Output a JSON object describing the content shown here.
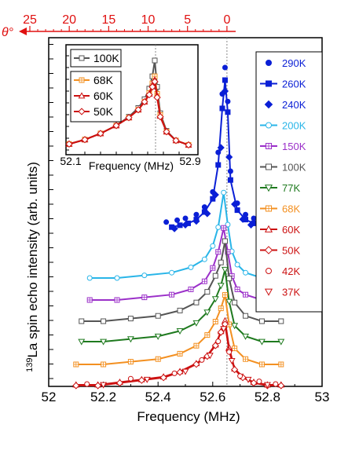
{
  "colors": {
    "290K": "#0a1fd6",
    "260K": "#0a1fd6",
    "240K": "#0a1fd6",
    "200K": "#29b5e8",
    "150K": "#9b30c9",
    "100K": "#555555",
    "77K": "#1f7a1f",
    "68K": "#f39021",
    "60K": "#cc1111",
    "50K": "#cc1111",
    "42K": "#cc1111",
    "37K": "#cc1111",
    "theta": "#e01010"
  },
  "chart_data": [
    {
      "type": "line",
      "xlabel": "Frequency (MHz)",
      "ylabel_sup": "139",
      "ylabel": "La spin echo intensity (arb. units)",
      "xlim": [
        52.0,
        53.0
      ],
      "x_ticks": [
        "52",
        "52.2",
        "52.4",
        "52.6",
        "52.8",
        "53"
      ],
      "x_tick_values": [
        52.0,
        52.2,
        52.4,
        52.6,
        52.8,
        53.0
      ],
      "vline_x": 52.652,
      "top_axis": {
        "label": "θ°",
        "ticks": [
          "25",
          "20",
          "15",
          "10",
          "5",
          "0"
        ],
        "tick_values": [
          25,
          20,
          15,
          10,
          5,
          0
        ]
      },
      "legend": [
        "290K",
        "260K",
        "240K",
        "200K",
        "150K",
        "100K",
        "77K",
        "68K",
        "60K",
        "50K",
        "42K",
        "37K"
      ],
      "series": [
        {
          "name": "290K",
          "marker": "circle-filled",
          "line": false,
          "x": [
            52.43,
            52.47,
            52.5,
            52.54,
            52.57,
            52.6,
            52.62,
            52.635,
            52.645,
            52.655,
            52.665,
            52.69,
            52.72,
            52.75,
            52.78
          ],
          "y": [
            0.18,
            0.19,
            0.2,
            0.22,
            0.26,
            0.34,
            0.55,
            0.86,
            1.0,
            0.82,
            0.45,
            0.28,
            0.22,
            0.2,
            0.19
          ]
        },
        {
          "name": "260K",
          "marker": "square-filled",
          "line": true,
          "x": [
            52.45,
            52.48,
            52.51,
            52.54,
            52.57,
            52.6,
            52.62,
            52.635,
            52.645,
            52.655,
            52.665,
            52.69,
            52.72,
            52.75,
            52.78
          ],
          "y": [
            0.17,
            0.18,
            0.19,
            0.21,
            0.25,
            0.32,
            0.5,
            0.8,
            0.95,
            0.78,
            0.42,
            0.26,
            0.21,
            0.19,
            0.18
          ]
        },
        {
          "name": "240K",
          "marker": "diamond-filled",
          "line": false,
          "x": [
            52.46,
            52.5,
            52.54,
            52.58,
            52.61,
            52.63,
            52.645,
            52.66,
            52.68,
            52.71,
            52.74,
            52.77
          ],
          "y": [
            0.17,
            0.19,
            0.21,
            0.25,
            0.35,
            0.6,
            0.9,
            0.55,
            0.3,
            0.22,
            0.19,
            0.18
          ]
        },
        {
          "name": "200K",
          "marker": "circle-open",
          "line": true,
          "x": [
            52.15,
            52.25,
            52.35,
            52.45,
            52.52,
            52.57,
            52.6,
            52.62,
            52.64,
            52.655,
            52.67,
            52.69,
            52.72,
            52.78,
            52.85
          ],
          "y": [
            0.0,
            0.0,
            0.01,
            0.02,
            0.04,
            0.07,
            0.12,
            0.19,
            0.32,
            0.2,
            0.1,
            0.05,
            0.02,
            0.0,
            0.0
          ]
        },
        {
          "name": "150K",
          "marker": "crossed-square-open",
          "line": true,
          "x": [
            52.15,
            52.25,
            52.35,
            52.45,
            52.52,
            52.57,
            52.6,
            52.62,
            52.64,
            52.655,
            52.67,
            52.69,
            52.72,
            52.78,
            52.85
          ],
          "y": [
            0.0,
            0.0,
            0.01,
            0.02,
            0.04,
            0.07,
            0.12,
            0.18,
            0.27,
            0.18,
            0.09,
            0.04,
            0.02,
            0.0,
            0.0
          ]
        },
        {
          "name": "100K",
          "marker": "square-open",
          "line": true,
          "x": [
            52.12,
            52.2,
            52.3,
            52.4,
            52.48,
            52.54,
            52.58,
            52.61,
            52.63,
            52.645,
            52.66,
            52.68,
            52.72,
            52.78,
            52.85
          ],
          "y": [
            0.0,
            0.0,
            0.01,
            0.02,
            0.04,
            0.07,
            0.11,
            0.17,
            0.22,
            0.3,
            0.16,
            0.07,
            0.02,
            0.0,
            0.0
          ]
        },
        {
          "name": "77K",
          "marker": "triangle-down-open",
          "line": true,
          "x": [
            52.12,
            52.2,
            52.3,
            52.4,
            52.48,
            52.54,
            52.58,
            52.61,
            52.63,
            52.645,
            52.66,
            52.68,
            52.72,
            52.78,
            52.85
          ],
          "y": [
            0.0,
            0.0,
            0.01,
            0.02,
            0.04,
            0.07,
            0.11,
            0.16,
            0.21,
            0.27,
            0.15,
            0.06,
            0.02,
            0.0,
            0.0
          ]
        },
        {
          "name": "68K",
          "marker": "crossed-square-open",
          "line": true,
          "x": [
            52.1,
            52.2,
            52.3,
            52.4,
            52.48,
            52.54,
            52.58,
            52.61,
            52.63,
            52.645,
            52.66,
            52.68,
            52.72,
            52.78,
            52.85
          ],
          "y": [
            0.0,
            0.0,
            0.01,
            0.02,
            0.04,
            0.07,
            0.11,
            0.16,
            0.21,
            0.26,
            0.15,
            0.06,
            0.02,
            0.0,
            0.0
          ]
        },
        {
          "name": "60K",
          "marker": "triangle-up-open",
          "line": true,
          "x": [
            52.1,
            52.18,
            52.26,
            52.34,
            52.42,
            52.48,
            52.54,
            52.58,
            52.61,
            52.63,
            52.645,
            52.66,
            52.68,
            52.71,
            52.75,
            52.8,
            52.85
          ],
          "y": [
            0.0,
            0.0,
            0.01,
            0.02,
            0.03,
            0.05,
            0.08,
            0.11,
            0.15,
            0.2,
            0.24,
            0.14,
            0.06,
            0.03,
            0.01,
            0.0,
            0.0
          ]
        },
        {
          "name": "50K",
          "marker": "diamond-open",
          "line": true,
          "x": [
            52.1,
            52.18,
            52.26,
            52.34,
            52.42,
            52.48,
            52.54,
            52.58,
            52.61,
            52.63,
            52.645,
            52.66,
            52.68,
            52.71,
            52.75,
            52.8,
            52.85
          ],
          "y": [
            0.0,
            0.0,
            0.01,
            0.02,
            0.03,
            0.05,
            0.08,
            0.11,
            0.15,
            0.2,
            0.23,
            0.13,
            0.06,
            0.03,
            0.01,
            0.0,
            0.0
          ]
        },
        {
          "name": "42K",
          "marker": "circle-open",
          "line": false,
          "x": [
            52.14,
            52.3,
            52.46,
            52.56,
            52.62,
            52.66,
            52.7,
            52.77,
            52.83
          ],
          "y": [
            0.0,
            0.02,
            0.04,
            0.09,
            0.16,
            0.12,
            0.03,
            0.01,
            0.0
          ]
        },
        {
          "name": "37K",
          "marker": "triangle-down-open",
          "line": false,
          "x": [
            52.2,
            52.36,
            52.5,
            52.59,
            52.64,
            52.67,
            52.73,
            52.8
          ],
          "y": [
            0.0,
            0.02,
            0.05,
            0.11,
            0.21,
            0.09,
            0.02,
            0.0
          ]
        }
      ]
    },
    {
      "type": "line",
      "name": "inset",
      "xlabel": "Frequency (MHz)",
      "xlim": [
        52.1,
        52.9
      ],
      "x_ticks": [
        "52.1",
        "52.9"
      ],
      "x_tick_values": [
        52.1,
        52.9
      ],
      "vline_x": 52.65,
      "legend": [
        "100K",
        "68K",
        "60K",
        "50K"
      ],
      "series": [
        {
          "name": "100K",
          "marker": "square-open",
          "line": true,
          "x": [
            52.1,
            52.2,
            52.3,
            52.4,
            52.48,
            52.54,
            52.58,
            52.61,
            52.63,
            52.645,
            52.66,
            52.68,
            52.72,
            52.78,
            52.86
          ],
          "y": [
            0.05,
            0.1,
            0.17,
            0.26,
            0.36,
            0.46,
            0.56,
            0.68,
            0.82,
            1.0,
            0.7,
            0.4,
            0.2,
            0.09,
            0.04
          ]
        },
        {
          "name": "68K",
          "marker": "crossed-square-open",
          "line": true,
          "x": [
            52.1,
            52.2,
            52.3,
            52.4,
            52.48,
            52.54,
            52.58,
            52.61,
            52.63,
            52.645,
            52.66,
            52.68,
            52.72,
            52.78,
            52.86
          ],
          "y": [
            0.05,
            0.1,
            0.17,
            0.26,
            0.35,
            0.44,
            0.53,
            0.63,
            0.74,
            0.82,
            0.62,
            0.38,
            0.19,
            0.09,
            0.04
          ]
        },
        {
          "name": "60K",
          "marker": "triangle-up-open",
          "line": true,
          "x": [
            52.1,
            52.2,
            52.3,
            52.4,
            52.48,
            52.54,
            52.58,
            52.61,
            52.63,
            52.645,
            52.66,
            52.68,
            52.72,
            52.78,
            52.86
          ],
          "y": [
            0.05,
            0.1,
            0.17,
            0.26,
            0.35,
            0.44,
            0.53,
            0.62,
            0.72,
            0.78,
            0.6,
            0.37,
            0.19,
            0.09,
            0.04
          ]
        },
        {
          "name": "50K",
          "marker": "diamond-open",
          "line": true,
          "x": [
            52.1,
            52.2,
            52.3,
            52.4,
            52.48,
            52.54,
            52.58,
            52.61,
            52.63,
            52.645,
            52.66,
            52.68,
            52.72,
            52.78,
            52.86
          ],
          "y": [
            0.05,
            0.1,
            0.17,
            0.26,
            0.35,
            0.44,
            0.53,
            0.61,
            0.7,
            0.76,
            0.58,
            0.36,
            0.19,
            0.09,
            0.04
          ]
        }
      ]
    }
  ]
}
